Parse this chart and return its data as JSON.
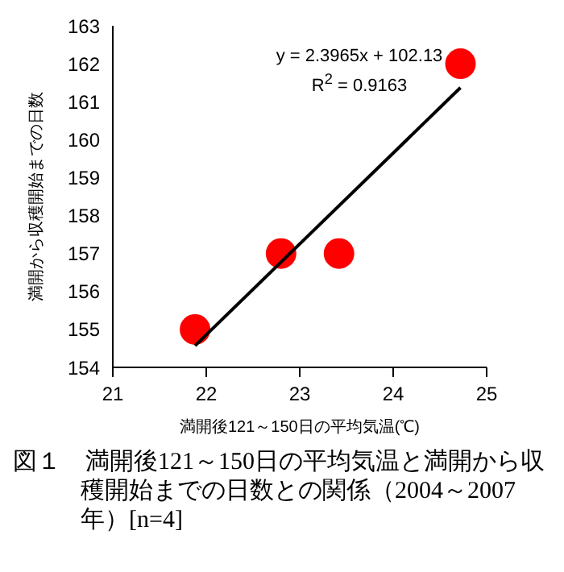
{
  "chart_data": {
    "type": "scatter",
    "title": "図１　満開後121～150日の平均気温と満開から収穫開始までの日数との関係（2004～2007年）[n=4]",
    "xlabel": "満開後121～150日の平均気温(℃)",
    "ylabel": "満開から収穫開始までの日数",
    "x": [
      21.88,
      22.8,
      23.42,
      24.72
    ],
    "series": [
      {
        "color": "#ff0000",
        "values": [
          155,
          157,
          157,
          162
        ],
        "marker": "circle"
      },
      {
        "type": "line",
        "color": "#000000",
        "x": [
          21.88,
          24.72
        ],
        "values": [
          154.57,
          161.37
        ],
        "marker": "none",
        "line_style": "solid"
      }
    ],
    "annotations": [
      "y = 2.3965x + 102.13",
      "R$^{2}$ = 0.9163"
    ],
    "xlim": [
      21,
      25
    ],
    "xticks": [
      21,
      22,
      23,
      24,
      25
    ],
    "ylim": [
      154,
      163
    ],
    "yticks": [
      154,
      155,
      156,
      157,
      158,
      159,
      160,
      161,
      162,
      163
    ],
    "grid": false,
    "legend": false
  }
}
